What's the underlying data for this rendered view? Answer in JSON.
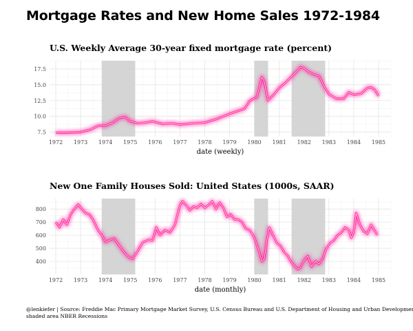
{
  "title": "Mortgage Rates and New Home Sales 1972-1984",
  "chart_data": [
    {
      "type": "line",
      "title": "U.S. Weekly Average 30-year fixed mortgage rate (percent)",
      "xlabel": "date (weekly)",
      "ylabel": "",
      "xlim": [
        1971.75,
        1985.5
      ],
      "ylim": [
        6.8,
        18.8
      ],
      "xticks": [
        "1972",
        "1973",
        "1974",
        "1975",
        "1976",
        "1977",
        "1978",
        "1979",
        "1980",
        "1981",
        "1982",
        "1983",
        "1984",
        "1985"
      ],
      "yticks": [
        "7.5",
        "10.0",
        "12.5",
        "15.0",
        "17.5"
      ],
      "grid": true,
      "line_color": "#ff1493",
      "recession_color": "#d3d3d3",
      "recessions": [
        [
          1973.85,
          1975.2
        ],
        [
          1980.0,
          1980.55
        ],
        [
          1981.5,
          1982.85
        ]
      ],
      "series": [
        {
          "name": "30-year fixed mortgage rate",
          "x": [
            1972.0,
            1972.5,
            1973.0,
            1973.4,
            1973.7,
            1974.0,
            1974.3,
            1974.55,
            1974.8,
            1975.0,
            1975.3,
            1975.6,
            1975.9,
            1976.3,
            1976.7,
            1977.0,
            1977.5,
            1978.0,
            1978.5,
            1979.0,
            1979.3,
            1979.6,
            1979.8,
            1979.95,
            1980.1,
            1980.3,
            1980.4,
            1980.55,
            1980.75,
            1981.0,
            1981.3,
            1981.6,
            1981.75,
            1981.85,
            1982.0,
            1982.2,
            1982.4,
            1982.6,
            1982.8,
            1983.0,
            1983.3,
            1983.6,
            1983.8,
            1984.0,
            1984.3,
            1984.55,
            1984.7,
            1984.85,
            1985.0
          ],
          "values": [
            7.4,
            7.4,
            7.5,
            7.9,
            8.5,
            8.5,
            9.0,
            9.7,
            9.9,
            9.2,
            8.9,
            9.0,
            9.2,
            8.8,
            8.9,
            8.7,
            8.9,
            9.0,
            9.6,
            10.4,
            10.8,
            11.2,
            12.4,
            12.8,
            13.0,
            16.2,
            15.5,
            12.5,
            13.3,
            14.5,
            15.5,
            16.7,
            17.3,
            17.8,
            17.6,
            17.0,
            16.6,
            16.4,
            14.8,
            13.5,
            12.8,
            12.8,
            13.8,
            13.4,
            13.6,
            14.5,
            14.6,
            14.2,
            13.2
          ]
        }
      ]
    },
    {
      "type": "line",
      "title": "New One Family Houses Sold: United States (1000s, SAAR)",
      "xlabel": "date (monthly)",
      "ylabel": "",
      "xlim": [
        1971.75,
        1985.5
      ],
      "ylim": [
        300,
        880
      ],
      "xticks": [
        "1972",
        "1973",
        "1974",
        "1975",
        "1976",
        "1977",
        "1978",
        "1979",
        "1980",
        "1981",
        "1982",
        "1983",
        "1984",
        "1985"
      ],
      "yticks": [
        "400",
        "500",
        "600",
        "700",
        "800"
      ],
      "grid": true,
      "line_color": "#ff1493",
      "recession_color": "#d3d3d3",
      "recessions": [
        [
          1973.85,
          1975.2
        ],
        [
          1980.0,
          1980.55
        ],
        [
          1981.5,
          1982.85
        ]
      ],
      "series": [
        {
          "name": "New one family houses sold",
          "x": [
            1972.0,
            1972.15,
            1972.3,
            1972.45,
            1972.6,
            1972.75,
            1972.9,
            1973.05,
            1973.2,
            1973.35,
            1973.5,
            1973.7,
            1973.85,
            1974.0,
            1974.2,
            1974.35,
            1974.5,
            1974.65,
            1974.8,
            1974.95,
            1975.1,
            1975.3,
            1975.5,
            1975.75,
            1975.9,
            1976.05,
            1976.2,
            1976.4,
            1976.6,
            1976.8,
            1977.0,
            1977.1,
            1977.25,
            1977.4,
            1977.55,
            1977.7,
            1977.85,
            1978.0,
            1978.15,
            1978.3,
            1978.45,
            1978.6,
            1978.75,
            1978.9,
            1979.05,
            1979.2,
            1979.35,
            1979.5,
            1979.65,
            1979.8,
            1979.95,
            1980.1,
            1980.2,
            1980.3,
            1980.4,
            1980.5,
            1980.6,
            1980.75,
            1980.9,
            1981.05,
            1981.2,
            1981.35,
            1981.5,
            1981.6,
            1981.75,
            1981.85,
            1981.95,
            1982.05,
            1982.15,
            1982.3,
            1982.45,
            1982.6,
            1982.75,
            1982.9,
            1983.05,
            1983.2,
            1983.35,
            1983.5,
            1983.65,
            1983.8,
            1983.9,
            1984.0,
            1984.1,
            1984.25,
            1984.4,
            1984.55,
            1984.7,
            1984.8,
            1984.95
          ],
          "values": [
            700,
            660,
            720,
            680,
            760,
            800,
            835,
            800,
            770,
            760,
            720,
            640,
            600,
            550,
            565,
            575,
            535,
            495,
            460,
            430,
            420,
            480,
            545,
            565,
            560,
            660,
            600,
            640,
            620,
            680,
            830,
            860,
            830,
            790,
            820,
            810,
            840,
            810,
            830,
            860,
            800,
            850,
            810,
            740,
            760,
            720,
            720,
            700,
            650,
            640,
            600,
            530,
            470,
            400,
            420,
            560,
            660,
            600,
            540,
            520,
            470,
            440,
            390,
            370,
            340,
            350,
            390,
            420,
            440,
            360,
            400,
            380,
            420,
            500,
            540,
            560,
            600,
            620,
            660,
            640,
            580,
            620,
            770,
            680,
            630,
            610,
            680,
            650,
            600
          ]
        }
      ]
    }
  ],
  "caption": {
    "line1": "@lenkiefer  |  Source: Freddie Mac Primary Mortgage Market Survey, U.S. Census Bureau and  U.S. Department of Housing and Urban Development",
    "line2": "shaded area NBER Recessions"
  }
}
